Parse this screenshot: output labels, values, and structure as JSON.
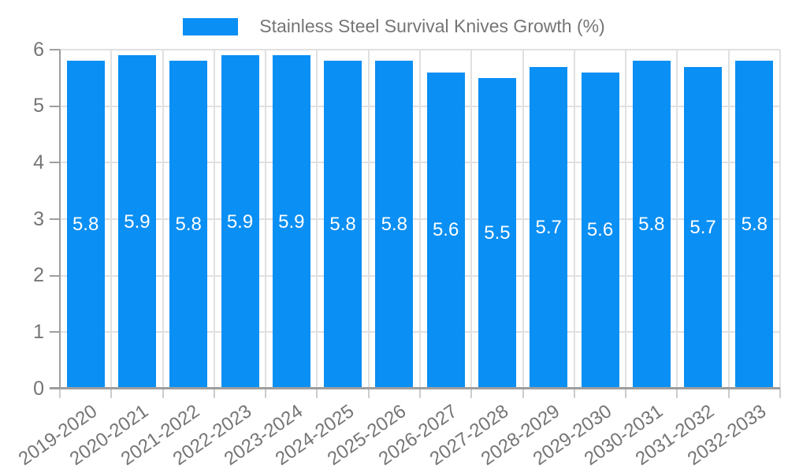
{
  "legend": {
    "label": "Stainless Steel Survival Knives Growth (%)"
  },
  "chart_data": {
    "type": "bar",
    "title": "Stainless Steel Survival Knives Growth (%)",
    "categories": [
      "2019-2020",
      "2020-2021",
      "2021-2022",
      "2022-2023",
      "2023-2024",
      "2024-2025",
      "2025-2026",
      "2026-2027",
      "2027-2028",
      "2028-2029",
      "2029-2030",
      "2030-2031",
      "2031-2032",
      "2032-2033"
    ],
    "values": [
      5.8,
      5.9,
      5.8,
      5.9,
      5.9,
      5.8,
      5.8,
      5.6,
      5.5,
      5.7,
      5.6,
      5.8,
      5.7,
      5.8
    ],
    "bar_labels": [
      "5.8",
      "5.9",
      "5.8",
      "5.9",
      "5.9",
      "5.8",
      "5.8",
      "5.6",
      "5.5",
      "5.7",
      "5.6",
      "5.8",
      "5.7",
      "5.8"
    ],
    "xlabel": "",
    "ylabel": "",
    "ylim": [
      0,
      6
    ],
    "yticks": [
      "0",
      "1",
      "2",
      "3",
      "4",
      "5",
      "6"
    ],
    "grid": true,
    "legend_position": "top",
    "colors": {
      "bar": "#0A8FF4",
      "bar_label": "#FFFFFF",
      "axis": "#9E9E9E",
      "gridline": "#E0E0E0",
      "x_tick": "#CCCCCC",
      "tick_label": "#757575",
      "background": "#FFFFFF"
    }
  }
}
